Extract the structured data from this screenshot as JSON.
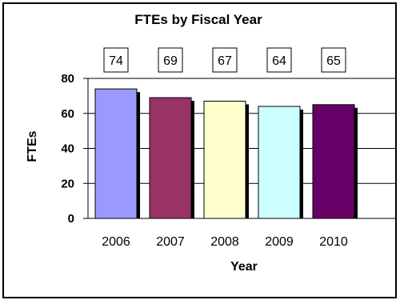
{
  "chart_data": {
    "type": "bar",
    "title": "FTEs by Fiscal Year",
    "xlabel": "Year",
    "ylabel": "FTEs",
    "categories": [
      "2006",
      "2007",
      "2008",
      "2009",
      "2010"
    ],
    "values": [
      74,
      69,
      67,
      64,
      65
    ],
    "data_labels": [
      "74",
      "69",
      "67",
      "64",
      "65"
    ],
    "ylim": [
      0,
      80
    ],
    "yticks": [
      "0",
      "20",
      "40",
      "60",
      "80"
    ],
    "grid": true,
    "legend": "none",
    "colors": [
      "#9999ff",
      "#993366",
      "#ffffcc",
      "#ccffff",
      "#660066"
    ],
    "shadow_color": "#000000"
  }
}
